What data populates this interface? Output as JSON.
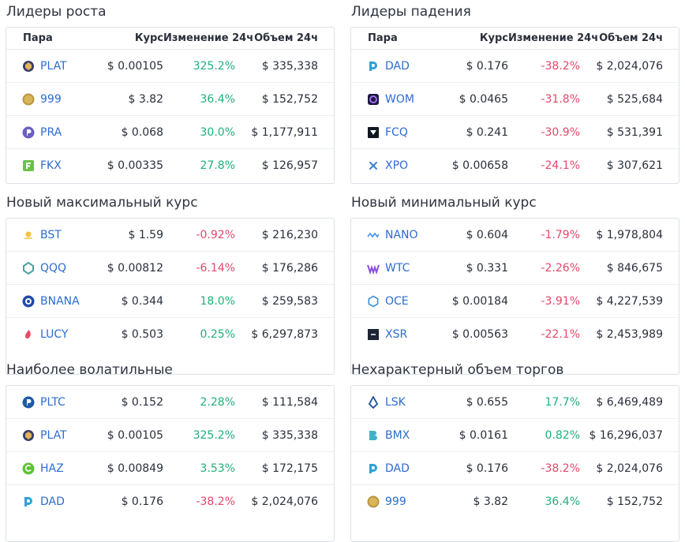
{
  "headers": {
    "pair": "Пара",
    "price": "Курс",
    "change": "Изменение 24ч",
    "volume": "Объем 24ч"
  },
  "sections": [
    {
      "title": "Лидеры роста",
      "rows": [
        {
          "icon": "plat-coin-icon",
          "pair": "PLAT",
          "price": "$ 0.00105",
          "change": "325.2%",
          "dir": "pos",
          "volume": "$ 335,338"
        },
        {
          "icon": "999-coin-icon",
          "pair": "999",
          "price": "$ 3.82",
          "change": "36.4%",
          "dir": "pos",
          "volume": "$ 152,752"
        },
        {
          "icon": "pra-coin-icon",
          "pair": "PRA",
          "price": "$ 0.068",
          "change": "30.0%",
          "dir": "pos",
          "volume": "$ 1,177,911"
        },
        {
          "icon": "fkx-coin-icon",
          "pair": "FKX",
          "price": "$ 0.00335",
          "change": "27.8%",
          "dir": "pos",
          "volume": "$ 126,957"
        }
      ]
    },
    {
      "title": "Лидеры падения",
      "rows": [
        {
          "icon": "dad-coin-icon",
          "pair": "DAD",
          "price": "$ 0.176",
          "change": "-38.2%",
          "dir": "neg",
          "volume": "$ 2,024,076"
        },
        {
          "icon": "wom-coin-icon",
          "pair": "WOM",
          "price": "$ 0.0465",
          "change": "-31.8%",
          "dir": "neg",
          "volume": "$ 525,684"
        },
        {
          "icon": "fcq-coin-icon",
          "pair": "FCQ",
          "price": "$ 0.241",
          "change": "-30.9%",
          "dir": "neg",
          "volume": "$ 531,391"
        },
        {
          "icon": "xpo-coin-icon",
          "pair": "XPO",
          "price": "$ 0.00658",
          "change": "-24.1%",
          "dir": "neg",
          "volume": "$ 307,621"
        }
      ]
    },
    {
      "title": "Новый максимальный курс",
      "rows": [
        {
          "icon": "bst-coin-icon",
          "pair": "BST",
          "price": "$ 1.59",
          "change": "-0.92%",
          "dir": "neg",
          "volume": "$ 216,230"
        },
        {
          "icon": "qqq-coin-icon",
          "pair": "QQQ",
          "price": "$ 0.00812",
          "change": "-6.14%",
          "dir": "neg",
          "volume": "$ 176,286"
        },
        {
          "icon": "bnana-coin-icon",
          "pair": "BNANA",
          "price": "$ 0.344",
          "change": "18.0%",
          "dir": "pos",
          "volume": "$ 259,583"
        },
        {
          "icon": "lucy-coin-icon",
          "pair": "LUCY",
          "price": "$ 0.503",
          "change": "0.25%",
          "dir": "pos",
          "volume": "$ 6,297,873"
        }
      ]
    },
    {
      "title": "Новый минимальный курс",
      "rows": [
        {
          "icon": "nano-coin-icon",
          "pair": "NANO",
          "price": "$ 0.604",
          "change": "-1.79%",
          "dir": "neg",
          "volume": "$ 1,978,804"
        },
        {
          "icon": "wtc-coin-icon",
          "pair": "WTC",
          "price": "$ 0.331",
          "change": "-2.26%",
          "dir": "neg",
          "volume": "$ 846,675"
        },
        {
          "icon": "oce-coin-icon",
          "pair": "OCE",
          "price": "$ 0.00184",
          "change": "-3.91%",
          "dir": "neg",
          "volume": "$ 4,227,539"
        },
        {
          "icon": "xsr-coin-icon",
          "pair": "XSR",
          "price": "$ 0.00563",
          "change": "-22.1%",
          "dir": "neg",
          "volume": "$ 2,453,989"
        }
      ]
    },
    {
      "title": "Наиболее волатильные",
      "rows": [
        {
          "icon": "pltc-coin-icon",
          "pair": "PLTC",
          "price": "$ 0.152",
          "change": "2.28%",
          "dir": "pos",
          "volume": "$ 111,584"
        },
        {
          "icon": "plat-coin-icon",
          "pair": "PLAT",
          "price": "$ 0.00105",
          "change": "325.2%",
          "dir": "pos",
          "volume": "$ 335,338"
        },
        {
          "icon": "haz-coin-icon",
          "pair": "HAZ",
          "price": "$ 0.00849",
          "change": "3.53%",
          "dir": "pos",
          "volume": "$ 172,175"
        },
        {
          "icon": "dad-coin-icon",
          "pair": "DAD",
          "price": "$ 0.176",
          "change": "-38.2%",
          "dir": "neg",
          "volume": "$ 2,024,076"
        }
      ]
    },
    {
      "title": "Нехарактерный объем торгов",
      "rows": [
        {
          "icon": "lsk-coin-icon",
          "pair": "LSK",
          "price": "$ 0.655",
          "change": "17.7%",
          "dir": "pos",
          "volume": "$ 6,469,489"
        },
        {
          "icon": "bmx-coin-icon",
          "pair": "BMX",
          "price": "$ 0.0161",
          "change": "0.82%",
          "dir": "pos",
          "volume": "$ 16,296,037"
        },
        {
          "icon": "dad-coin-icon",
          "pair": "DAD",
          "price": "$ 0.176",
          "change": "-38.2%",
          "dir": "neg",
          "volume": "$ 2,024,076"
        },
        {
          "icon": "999-coin-icon",
          "pair": "999",
          "price": "$ 3.82",
          "change": "36.4%",
          "dir": "pos",
          "volume": "$ 152,752"
        }
      ]
    }
  ],
  "colors": {
    "positive": "#1fb07b",
    "negative": "#e5476a",
    "link": "#2d6cd1",
    "border": "#dde1e6"
  }
}
